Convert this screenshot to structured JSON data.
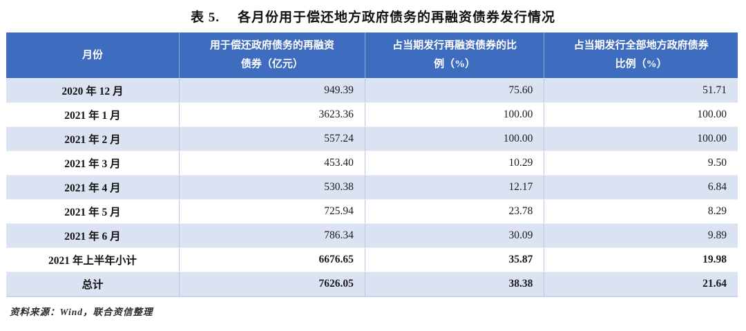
{
  "title": {
    "prefix": "表 5.",
    "text": "各月份用于偿还地方政府债务的再融资债券发行情况"
  },
  "colors": {
    "header_bg": "#3e6cbe",
    "header_text": "#ffffff",
    "row_alt_bg": "#dbe3f2",
    "row_plain_bg": "#ffffff",
    "vertical_border": "#b7c5e3"
  },
  "table": {
    "headers": [
      "月份",
      "用于偿还政府债务的再融资\n债券（亿元）",
      "占当期发行再融资债券的比\n例（%）",
      "占当期发行全部地方政府债券\n比例（%）"
    ],
    "rows": [
      {
        "month": "2020 年 12 月",
        "amount": "949.39",
        "pct_refi": "75.60",
        "pct_all": "51.71"
      },
      {
        "month": "2021 年 1 月",
        "amount": "3623.36",
        "pct_refi": "100.00",
        "pct_all": "100.00"
      },
      {
        "month": "2021 年 2 月",
        "amount": "557.24",
        "pct_refi": "100.00",
        "pct_all": "100.00"
      },
      {
        "month": "2021 年 3 月",
        "amount": "453.40",
        "pct_refi": "10.29",
        "pct_all": "9.50"
      },
      {
        "month": "2021 年 4 月",
        "amount": "530.38",
        "pct_refi": "12.17",
        "pct_all": "6.84"
      },
      {
        "month": "2021 年 5 月",
        "amount": "725.94",
        "pct_refi": "23.78",
        "pct_all": "8.29"
      },
      {
        "month": "2021 年 6 月",
        "amount": "786.34",
        "pct_refi": "30.09",
        "pct_all": "9.89"
      },
      {
        "month": "2021 年上半年小计",
        "amount": "6676.65",
        "pct_refi": "35.87",
        "pct_all": "19.98"
      },
      {
        "month": "总计",
        "amount": "7626.05",
        "pct_refi": "38.38",
        "pct_all": "21.64"
      }
    ]
  },
  "chart_data": {
    "type": "table",
    "title": "表 5. 各月份用于偿还地方政府债务的再融资债券发行情况",
    "columns": [
      "月份",
      "用于偿还政府债务的再融资债券（亿元）",
      "占当期发行再融资债券的比例（%）",
      "占当期发行全部地方政府债券比例（%）"
    ],
    "rows": [
      [
        "2020 年 12 月",
        949.39,
        75.6,
        51.71
      ],
      [
        "2021 年 1 月",
        3623.36,
        100.0,
        100.0
      ],
      [
        "2021 年 2 月",
        557.24,
        100.0,
        100.0
      ],
      [
        "2021 年 3 月",
        453.4,
        10.29,
        9.5
      ],
      [
        "2021 年 4 月",
        530.38,
        12.17,
        6.84
      ],
      [
        "2021 年 5 月",
        725.94,
        23.78,
        8.29
      ],
      [
        "2021 年 6 月",
        786.34,
        30.09,
        9.89
      ],
      [
        "2021 年上半年小计",
        6676.65,
        35.87,
        19.98
      ],
      [
        "总计",
        7626.05,
        38.38,
        21.64
      ]
    ]
  },
  "footer": {
    "source_note": "资料来源：Wind，联合资信整理"
  }
}
